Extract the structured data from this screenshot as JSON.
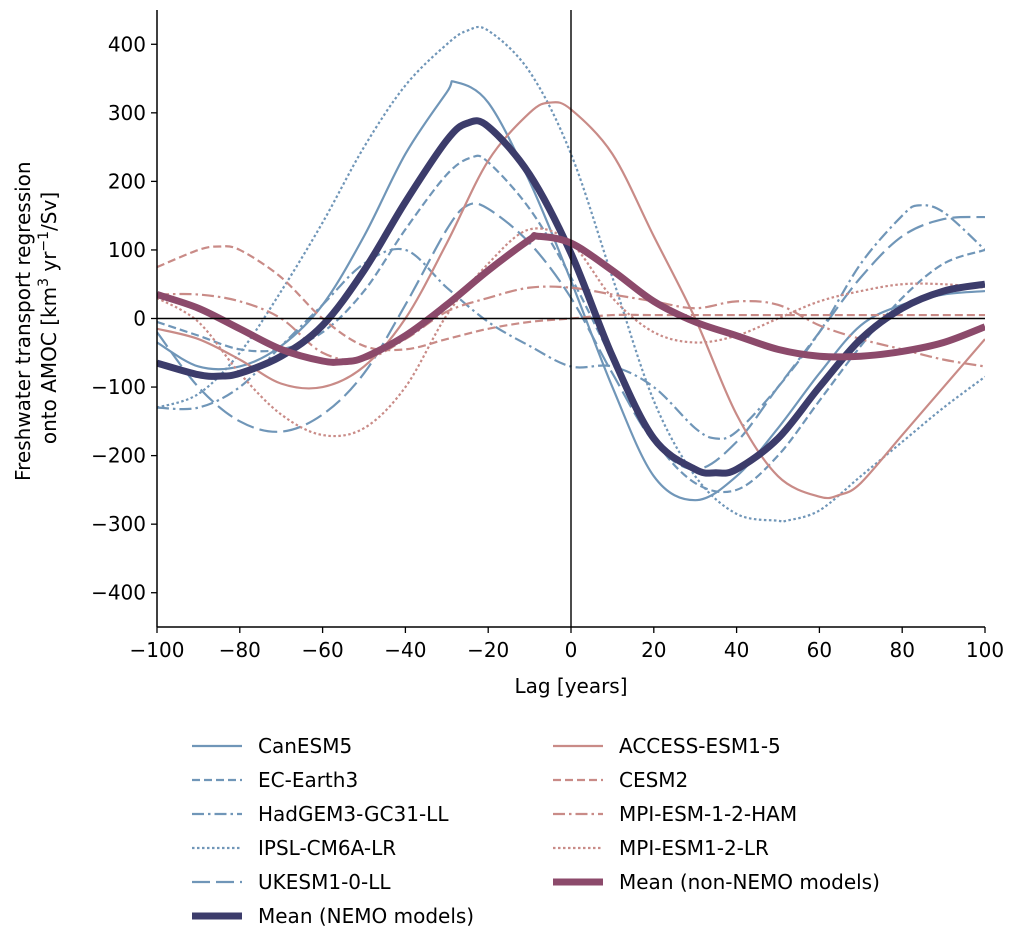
{
  "chart_data": {
    "type": "line",
    "title": "",
    "xlabel": "Lag [years]",
    "ylabel_line1": "Freshwater transport regression",
    "ylabel_line2_prefix": "onto AMOC [km",
    "ylabel_line2_mid": " yr",
    "ylabel_line2_suffix": "/Sv]",
    "ylabel_sup1": "3",
    "ylabel_sup2": "−1",
    "xlim": [
      -100,
      100
    ],
    "ylim": [
      -450,
      450
    ],
    "xticks": [
      -100,
      -80,
      -60,
      -40,
      -20,
      0,
      20,
      40,
      60,
      80,
      100
    ],
    "yticks": [
      -400,
      -300,
      -200,
      -100,
      0,
      100,
      200,
      300,
      400
    ],
    "xtick_labels": [
      "−100",
      "−80",
      "−60",
      "−40",
      "−20",
      "0",
      "20",
      "40",
      "60",
      "80",
      "100"
    ],
    "ytick_labels": [
      "−400",
      "−300",
      "−200",
      "−100",
      "0",
      "100",
      "200",
      "300",
      "400"
    ],
    "grid": false,
    "reference_lines": {
      "x": 0,
      "y": 0
    },
    "legend_placement": "below plot, two columns",
    "colors": {
      "nemo": "#7096b8",
      "non_nemo": "#c98b87",
      "nemo_mean": "#3c3c6b",
      "non_nemo_mean": "#8c4a6b"
    },
    "series": [
      {
        "name": "CanESM5",
        "group": "nemo",
        "style": "solid",
        "x": [
          -100,
          -90,
          -80,
          -70,
          -60,
          -50,
          -40,
          -30,
          -28,
          -20,
          -10,
          0,
          10,
          20,
          30,
          40,
          50,
          60,
          70,
          80,
          90,
          100
        ],
        "y": [
          -35,
          -70,
          -70,
          -40,
          20,
          120,
          240,
          330,
          345,
          315,
          200,
          55,
          -100,
          -230,
          -265,
          -230,
          -160,
          -80,
          -10,
          20,
          35,
          40
        ]
      },
      {
        "name": "EC-Earth3",
        "group": "nemo",
        "style": "dashed",
        "x": [
          -100,
          -90,
          -80,
          -70,
          -60,
          -50,
          -40,
          -30,
          -24,
          -20,
          -10,
          0,
          10,
          20,
          30,
          40,
          50,
          60,
          70,
          80,
          90,
          100
        ],
        "y": [
          -5,
          -25,
          -45,
          -45,
          -20,
          40,
          130,
          210,
          235,
          228,
          160,
          60,
          -60,
          -175,
          -240,
          -250,
          -200,
          -120,
          -40,
          30,
          80,
          100
        ]
      },
      {
        "name": "HadGEM3-GC31-LL",
        "group": "nemo",
        "style": "dashdot",
        "x": [
          -100,
          -90,
          -80,
          -70,
          -60,
          -50,
          -40,
          -30,
          -20,
          -10,
          0,
          10,
          20,
          30,
          35,
          40,
          50,
          60,
          70,
          80,
          84,
          90,
          100
        ],
        "y": [
          -130,
          -130,
          -100,
          -40,
          20,
          80,
          100,
          45,
          -5,
          -40,
          -70,
          -70,
          -100,
          -160,
          -175,
          -165,
          -100,
          -20,
          80,
          150,
          165,
          155,
          100
        ]
      },
      {
        "name": "IPSL-CM6A-LR",
        "group": "nemo",
        "style": "dotted",
        "x": [
          -100,
          -90,
          -80,
          -70,
          -60,
          -50,
          -40,
          -30,
          -25,
          -20,
          -10,
          0,
          10,
          20,
          30,
          40,
          50,
          52,
          60,
          70,
          80,
          90,
          100
        ],
        "y": [
          -130,
          -110,
          -50,
          40,
          140,
          250,
          340,
          400,
          420,
          420,
          360,
          240,
          60,
          -120,
          -230,
          -285,
          -295,
          -295,
          -280,
          -230,
          -180,
          -130,
          -85
        ]
      },
      {
        "name": "UKESM1-0-LL",
        "group": "nemo",
        "style": "longdash",
        "x": [
          -100,
          -90,
          -80,
          -70,
          -60,
          -50,
          -40,
          -30,
          -25,
          -20,
          -10,
          0,
          10,
          20,
          30,
          40,
          50,
          60,
          70,
          80,
          90,
          100
        ],
        "y": [
          -20,
          -100,
          -150,
          -165,
          -140,
          -80,
          20,
          130,
          165,
          160,
          110,
          30,
          -80,
          -180,
          -220,
          -180,
          -100,
          -20,
          60,
          120,
          145,
          148
        ]
      },
      {
        "name": "ACCESS-ESM1-5",
        "group": "non_nemo",
        "style": "solid",
        "x": [
          -100,
          -90,
          -80,
          -70,
          -60,
          -50,
          -40,
          -30,
          -20,
          -10,
          -5,
          0,
          10,
          20,
          30,
          40,
          50,
          60,
          65,
          70,
          80,
          90,
          100
        ],
        "y": [
          -15,
          -30,
          -60,
          -95,
          -100,
          -70,
          0,
          110,
          230,
          300,
          315,
          305,
          240,
          120,
          0,
          -140,
          -230,
          -260,
          -257,
          -240,
          -170,
          -100,
          -30
        ]
      },
      {
        "name": "CESM2",
        "group": "non_nemo",
        "style": "dashed",
        "x": [
          -100,
          -90,
          -85,
          -80,
          -70,
          -60,
          -50,
          -40,
          -30,
          -20,
          -10,
          0,
          10,
          20,
          30,
          40,
          50,
          60,
          70,
          80,
          90,
          100
        ],
        "y": [
          75,
          100,
          105,
          100,
          60,
          0,
          -40,
          -45,
          -30,
          -15,
          -5,
          0,
          5,
          5,
          5,
          5,
          5,
          5,
          5,
          5,
          5,
          5
        ]
      },
      {
        "name": "MPI-ESM-1-2-HAM",
        "group": "non_nemo",
        "style": "dashdot",
        "x": [
          -100,
          -90,
          -80,
          -70,
          -60,
          -50,
          -40,
          -30,
          -20,
          -10,
          0,
          10,
          20,
          30,
          40,
          50,
          60,
          70,
          80,
          90,
          100
        ],
        "y": [
          35,
          35,
          25,
          0,
          -50,
          -60,
          -30,
          10,
          30,
          45,
          45,
          35,
          25,
          15,
          25,
          20,
          -10,
          -30,
          -45,
          -60,
          -70
        ]
      },
      {
        "name": "MPI-ESM1-2-LR",
        "group": "non_nemo",
        "style": "dotted",
        "x": [
          -100,
          -90,
          -80,
          -70,
          -60,
          -50,
          -40,
          -30,
          -20,
          -10,
          0,
          10,
          20,
          30,
          40,
          50,
          60,
          70,
          80,
          90,
          100
        ],
        "y": [
          30,
          -5,
          -80,
          -140,
          -170,
          -160,
          -100,
          5,
          80,
          130,
          110,
          30,
          -20,
          -35,
          -25,
          0,
          25,
          40,
          50,
          50,
          45
        ]
      },
      {
        "name": "Mean (NEMO models)",
        "group": "nemo_mean",
        "style": "thick",
        "x": [
          -100,
          -90,
          -85,
          -80,
          -70,
          -60,
          -50,
          -40,
          -30,
          -25,
          -20,
          -10,
          0,
          10,
          20,
          30,
          35,
          40,
          50,
          60,
          70,
          80,
          90,
          100
        ],
        "y": [
          -65,
          -82,
          -84,
          -80,
          -55,
          -10,
          70,
          170,
          260,
          285,
          280,
          210,
          95,
          -55,
          -175,
          -220,
          -225,
          -220,
          -175,
          -100,
          -30,
          15,
          40,
          50
        ]
      },
      {
        "name": "Mean (non-NEMO models)",
        "group": "non_nemo_mean",
        "style": "thick",
        "x": [
          -100,
          -90,
          -80,
          -70,
          -60,
          -55,
          -50,
          -40,
          -30,
          -20,
          -10,
          -8,
          0,
          10,
          20,
          30,
          40,
          50,
          60,
          70,
          80,
          90,
          100
        ],
        "y": [
          35,
          15,
          -15,
          -45,
          -62,
          -63,
          -57,
          -25,
          20,
          70,
          115,
          120,
          110,
          70,
          25,
          -5,
          -25,
          -45,
          -55,
          -55,
          -48,
          -35,
          -12
        ]
      }
    ]
  }
}
